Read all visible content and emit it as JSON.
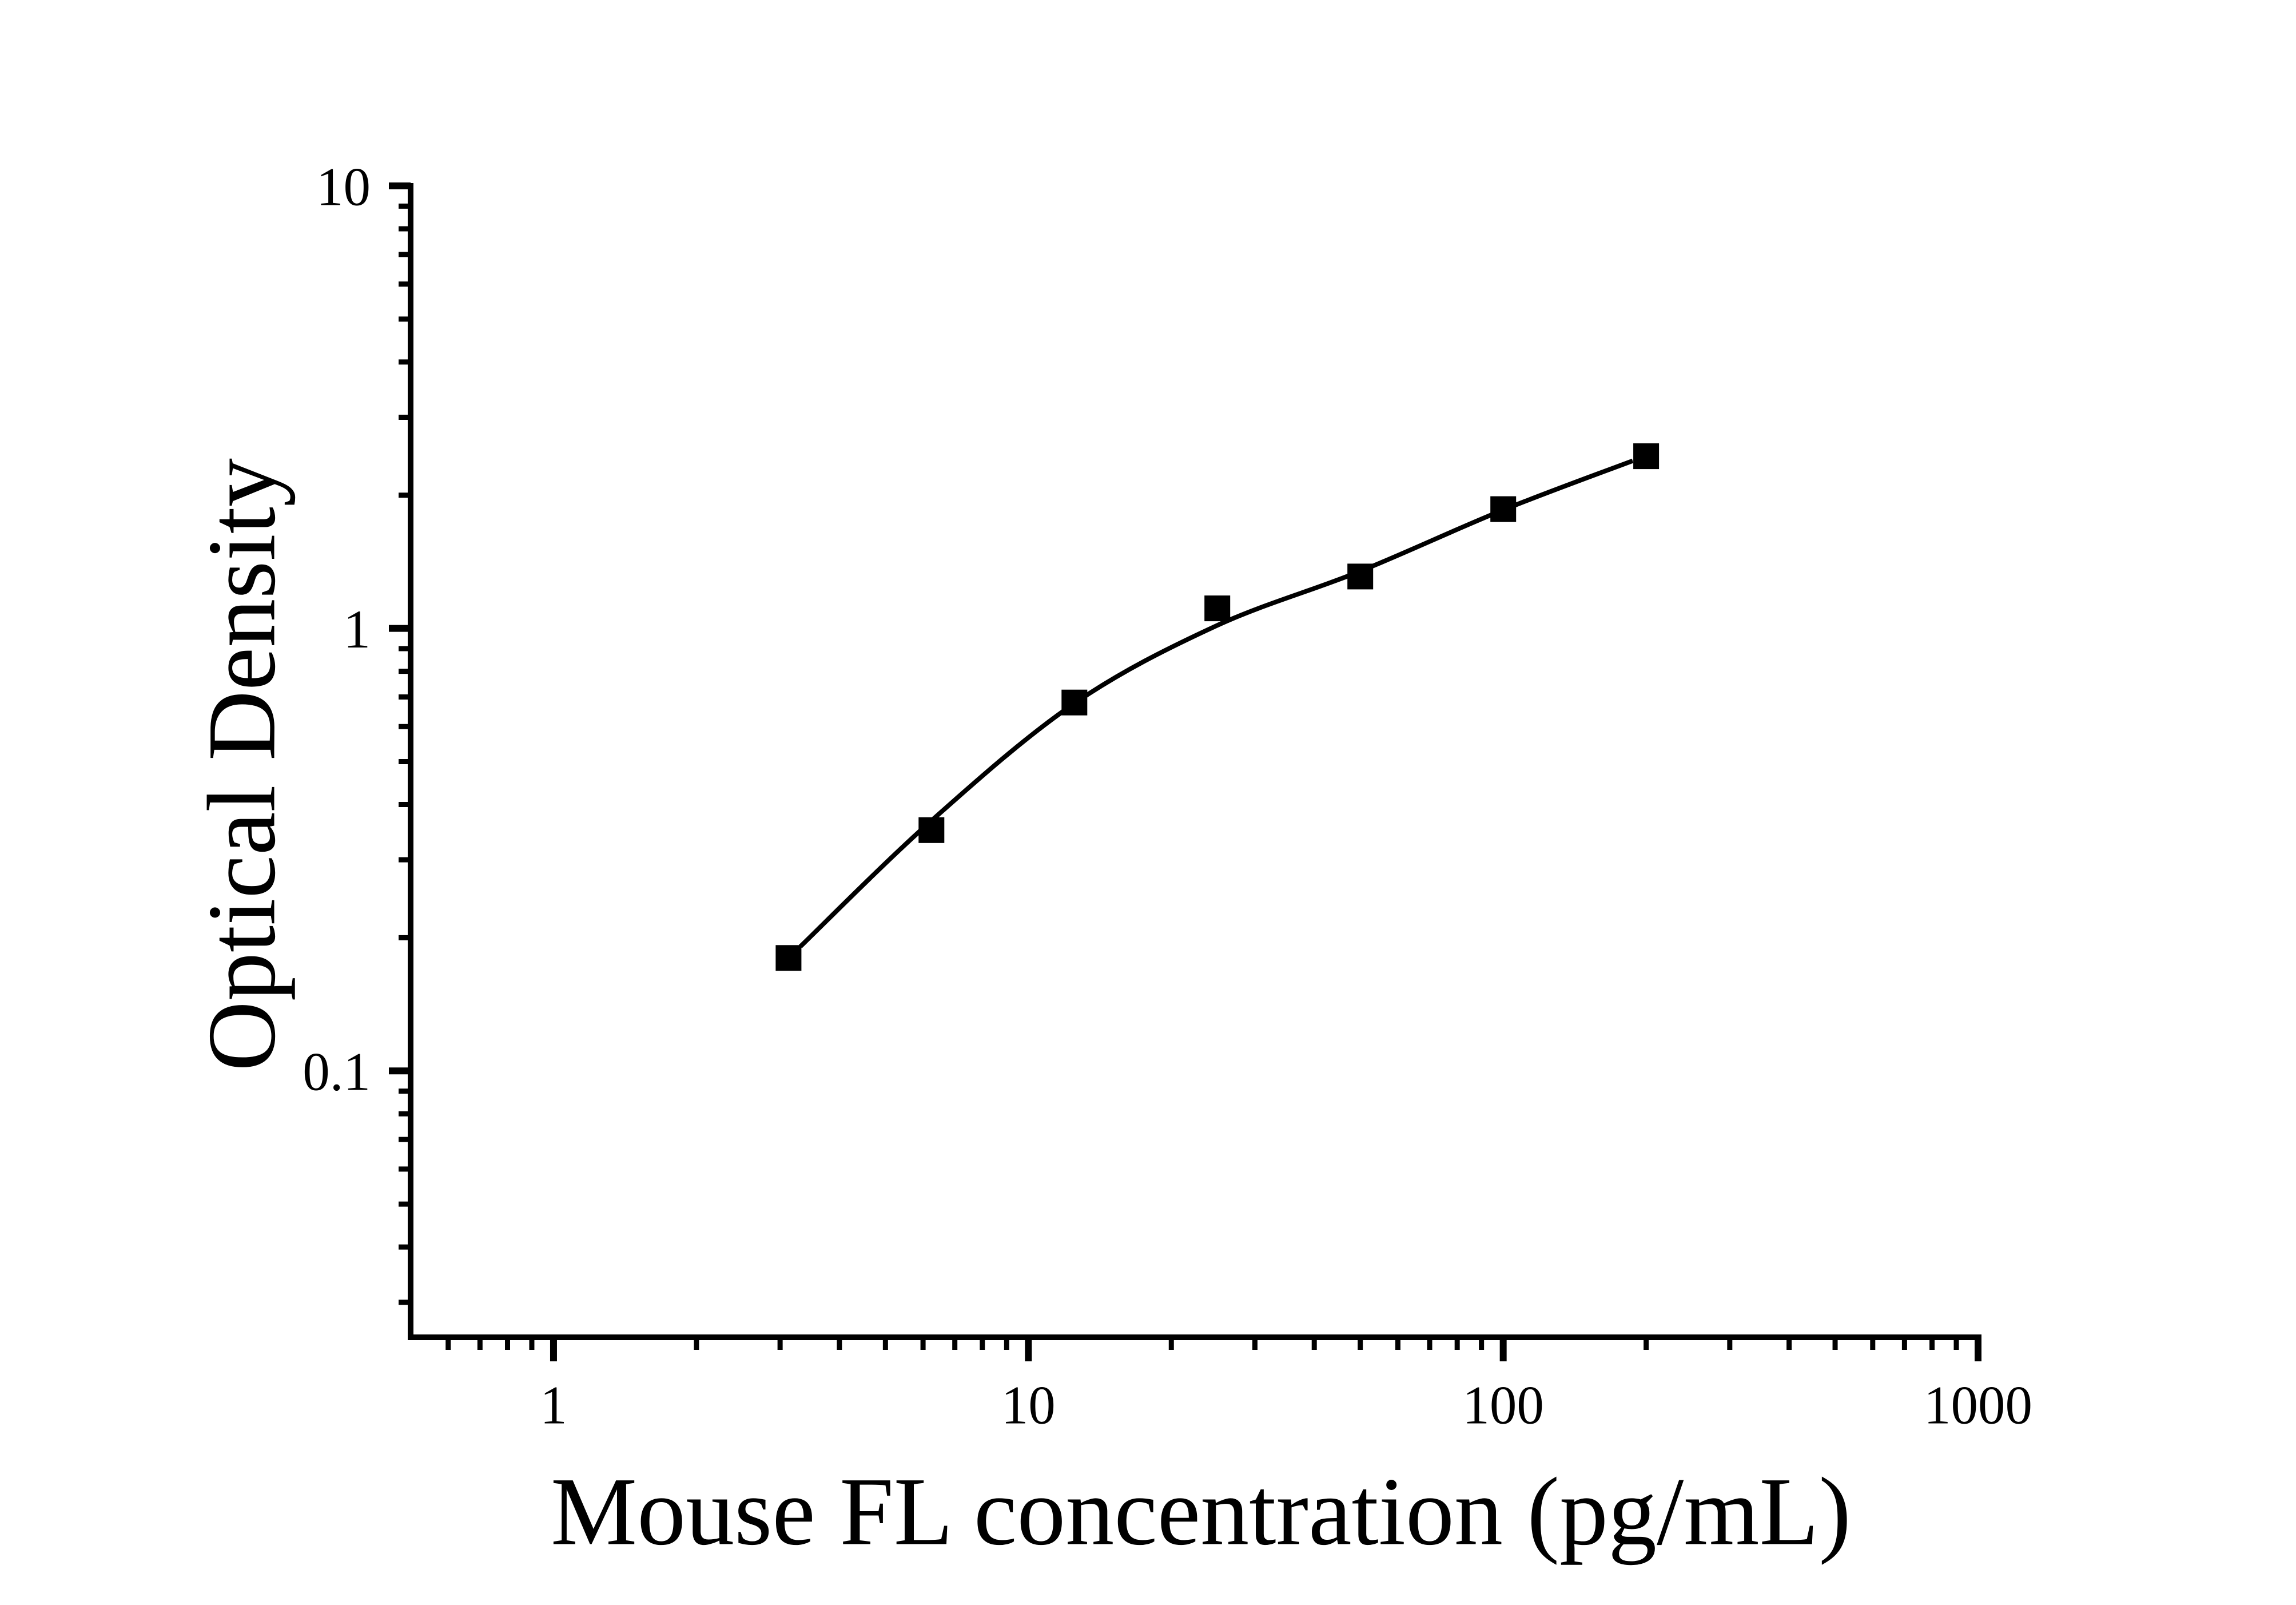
{
  "chart_data": {
    "type": "scatter",
    "title": "",
    "xlabel": "Mouse FL concentration (pg/mL)",
    "ylabel": "Optical Density",
    "x_scale": "log",
    "y_scale": "log",
    "xlim": [
      0.5,
      1000
    ],
    "ylim": [
      0.025,
      10
    ],
    "grid": false,
    "legend": null,
    "background_color": "#ffffff",
    "axis_color": "#000000",
    "marker_color": "#000000",
    "curve_color": "#000000",
    "x_ticks": [
      {
        "value": 1,
        "label": "1"
      },
      {
        "value": 10,
        "label": "10"
      },
      {
        "value": 100,
        "label": "100"
      },
      {
        "value": 1000,
        "label": "1000"
      }
    ],
    "y_ticks": [
      {
        "value": 10,
        "label": "10"
      },
      {
        "value": 1,
        "label": "1"
      },
      {
        "value": 0.1,
        "label": "0.1"
      }
    ],
    "series": [
      {
        "name": "standard-points",
        "marker": "filled-square",
        "x": [
          3.125,
          6.25,
          12.5,
          25,
          50,
          100,
          200
        ],
        "y": [
          0.18,
          0.35,
          0.68,
          1.11,
          1.31,
          1.86,
          2.45
        ]
      }
    ],
    "fit_curve": {
      "name": "four-parameter-logistic-fit",
      "anchors_x": [
        3.31,
        6.22,
        12.45,
        24.8,
        49.7,
        99.2,
        187.4
      ],
      "anchors_y": [
        0.191,
        0.366,
        0.675,
        1.012,
        1.343,
        1.846,
        2.392
      ]
    }
  }
}
